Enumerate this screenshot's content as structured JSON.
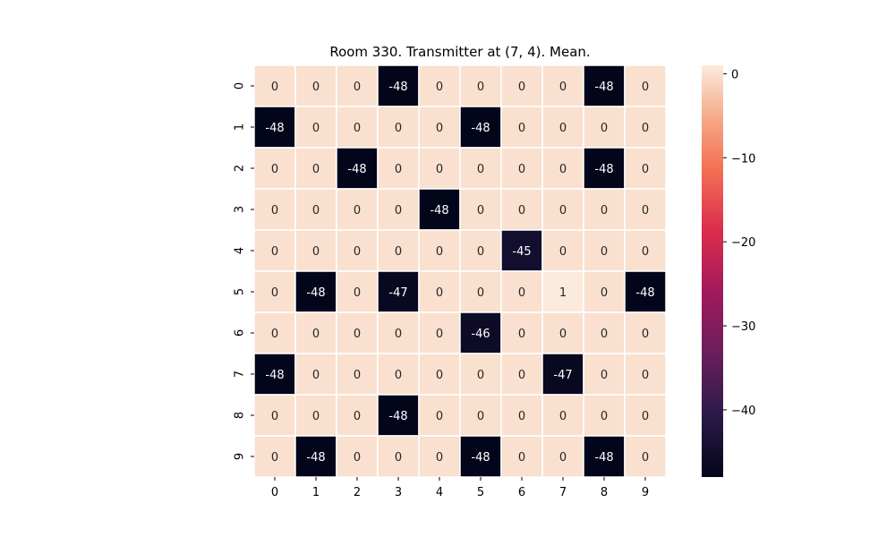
{
  "chart_data": {
    "type": "heatmap",
    "title": "Room 330. Transmitter at (7, 4). Mean.",
    "x_ticks": [
      "0",
      "1",
      "2",
      "3",
      "4",
      "5",
      "6",
      "7",
      "8",
      "9"
    ],
    "y_ticks": [
      "0",
      "1",
      "2",
      "3",
      "4",
      "5",
      "6",
      "7",
      "8",
      "9"
    ],
    "values": [
      [
        0,
        0,
        0,
        -48,
        0,
        0,
        0,
        0,
        -48,
        0
      ],
      [
        -48,
        0,
        0,
        0,
        0,
        -48,
        0,
        0,
        0,
        0
      ],
      [
        0,
        0,
        -48,
        0,
        0,
        0,
        0,
        0,
        -48,
        0
      ],
      [
        0,
        0,
        0,
        0,
        -48,
        0,
        0,
        0,
        0,
        0
      ],
      [
        0,
        0,
        0,
        0,
        0,
        0,
        -45,
        0,
        0,
        0
      ],
      [
        0,
        -48,
        0,
        -47,
        0,
        0,
        0,
        1,
        0,
        -48
      ],
      [
        0,
        0,
        0,
        0,
        0,
        -46,
        0,
        0,
        0,
        0
      ],
      [
        -48,
        0,
        0,
        0,
        0,
        0,
        0,
        -47,
        0,
        0
      ],
      [
        0,
        0,
        0,
        -48,
        0,
        0,
        0,
        0,
        0,
        0
      ],
      [
        0,
        -48,
        0,
        0,
        0,
        -48,
        0,
        0,
        -48,
        0
      ]
    ],
    "vmin": -48,
    "vmax": 1,
    "colormap": "rocket",
    "annotated": true,
    "grid_line_color": "#ffffff",
    "colorbar": {
      "ticks": [
        0,
        -10,
        -20,
        -30,
        -40
      ],
      "tick_labels": [
        "0",
        "−10",
        "−20",
        "−30",
        "−40"
      ],
      "placement": "right"
    }
  }
}
